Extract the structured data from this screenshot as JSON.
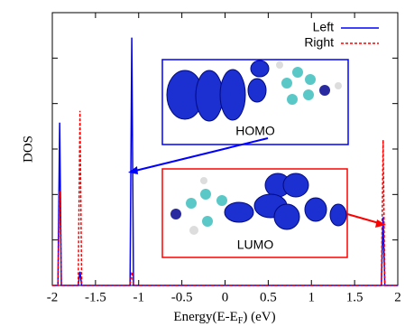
{
  "chart_data": {
    "type": "line",
    "ylabel": "DOS",
    "xlabel": [
      "Energy(E-E",
      "F",
      ") (eV)"
    ],
    "x": [
      -2,
      -1.935,
      -1.915,
      -1.895,
      -1.7,
      -1.68,
      -1.66,
      -1.1,
      -1.08,
      -1.06,
      1.81,
      1.83,
      1.85,
      2
    ],
    "series": [
      {
        "name": "Left",
        "color": "#0000ff",
        "dash": false,
        "values": [
          0,
          0,
          3.58,
          0,
          0,
          0.3,
          0,
          0,
          5.45,
          0,
          0,
          1.5,
          0,
          0
        ]
      },
      {
        "name": "Right",
        "color": "#ff0000",
        "dash": true,
        "values": [
          0,
          0,
          2.07,
          0,
          0,
          3.84,
          0,
          0,
          0.3,
          0,
          0,
          3.2,
          0,
          0
        ]
      }
    ],
    "xlim": [
      -2,
      2
    ],
    "xticks": [
      -2,
      -1.5,
      -1,
      -0.5,
      0,
      0.5,
      1,
      1.5,
      2
    ],
    "ylim": [
      0,
      6
    ],
    "yticks": [
      0,
      1,
      2,
      3,
      4,
      5,
      6
    ],
    "legend": "upper right",
    "annotations": [
      "HOMO",
      "LUMO"
    ]
  }
}
